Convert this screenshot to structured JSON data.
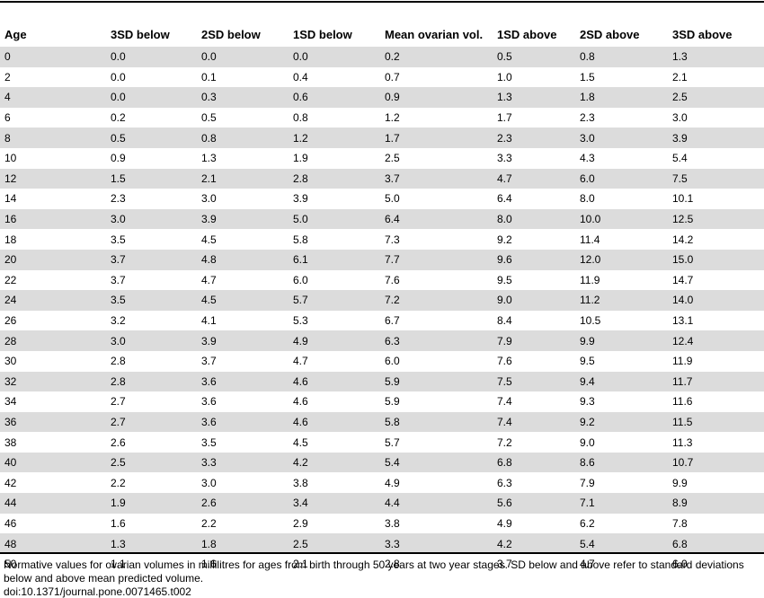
{
  "table": {
    "columns": [
      "Age",
      "3SD below",
      "2SD below",
      "1SD below",
      "Mean ovarian vol.",
      "1SD above",
      "2SD above",
      "3SD above"
    ],
    "rows": [
      [
        "0",
        "0.0",
        "0.0",
        "0.0",
        "0.2",
        "0.5",
        "0.8",
        "1.3"
      ],
      [
        "2",
        "0.0",
        "0.1",
        "0.4",
        "0.7",
        "1.0",
        "1.5",
        "2.1"
      ],
      [
        "4",
        "0.0",
        "0.3",
        "0.6",
        "0.9",
        "1.3",
        "1.8",
        "2.5"
      ],
      [
        "6",
        "0.2",
        "0.5",
        "0.8",
        "1.2",
        "1.7",
        "2.3",
        "3.0"
      ],
      [
        "8",
        "0.5",
        "0.8",
        "1.2",
        "1.7",
        "2.3",
        "3.0",
        "3.9"
      ],
      [
        "10",
        "0.9",
        "1.3",
        "1.9",
        "2.5",
        "3.3",
        "4.3",
        "5.4"
      ],
      [
        "12",
        "1.5",
        "2.1",
        "2.8",
        "3.7",
        "4.7",
        "6.0",
        "7.5"
      ],
      [
        "14",
        "2.3",
        "3.0",
        "3.9",
        "5.0",
        "6.4",
        "8.0",
        "10.1"
      ],
      [
        "16",
        "3.0",
        "3.9",
        "5.0",
        "6.4",
        "8.0",
        "10.0",
        "12.5"
      ],
      [
        "18",
        "3.5",
        "4.5",
        "5.8",
        "7.3",
        "9.2",
        "11.4",
        "14.2"
      ],
      [
        "20",
        "3.7",
        "4.8",
        "6.1",
        "7.7",
        "9.6",
        "12.0",
        "15.0"
      ],
      [
        "22",
        "3.7",
        "4.7",
        "6.0",
        "7.6",
        "9.5",
        "11.9",
        "14.7"
      ],
      [
        "24",
        "3.5",
        "4.5",
        "5.7",
        "7.2",
        "9.0",
        "11.2",
        "14.0"
      ],
      [
        "26",
        "3.2",
        "4.1",
        "5.3",
        "6.7",
        "8.4",
        "10.5",
        "13.1"
      ],
      [
        "28",
        "3.0",
        "3.9",
        "4.9",
        "6.3",
        "7.9",
        "9.9",
        "12.4"
      ],
      [
        "30",
        "2.8",
        "3.7",
        "4.7",
        "6.0",
        "7.6",
        "9.5",
        "11.9"
      ],
      [
        "32",
        "2.8",
        "3.6",
        "4.6",
        "5.9",
        "7.5",
        "9.4",
        "11.7"
      ],
      [
        "34",
        "2.7",
        "3.6",
        "4.6",
        "5.9",
        "7.4",
        "9.3",
        "11.6"
      ],
      [
        "36",
        "2.7",
        "3.6",
        "4.6",
        "5.8",
        "7.4",
        "9.2",
        "11.5"
      ],
      [
        "38",
        "2.6",
        "3.5",
        "4.5",
        "5.7",
        "7.2",
        "9.0",
        "11.3"
      ],
      [
        "40",
        "2.5",
        "3.3",
        "4.2",
        "5.4",
        "6.8",
        "8.6",
        "10.7"
      ],
      [
        "42",
        "2.2",
        "3.0",
        "3.8",
        "4.9",
        "6.3",
        "7.9",
        "9.9"
      ],
      [
        "44",
        "1.9",
        "2.6",
        "3.4",
        "4.4",
        "5.6",
        "7.1",
        "8.9"
      ],
      [
        "46",
        "1.6",
        "2.2",
        "2.9",
        "3.8",
        "4.9",
        "6.2",
        "7.8"
      ],
      [
        "48",
        "1.3",
        "1.8",
        "2.5",
        "3.3",
        "4.2",
        "5.4",
        "6.8"
      ],
      [
        "50",
        "1.1",
        "1.6",
        "2.1",
        "2.8",
        "3.7",
        "4.7",
        "6.0"
      ]
    ]
  },
  "caption": "Normative values for ovarian volumes in millilitres for ages from birth through 50 years at two year stages. SD below and above refer to standard deviations below and above mean predicted volume.",
  "doi": "doi:10.1371/journal.pone.0071465.t002"
}
